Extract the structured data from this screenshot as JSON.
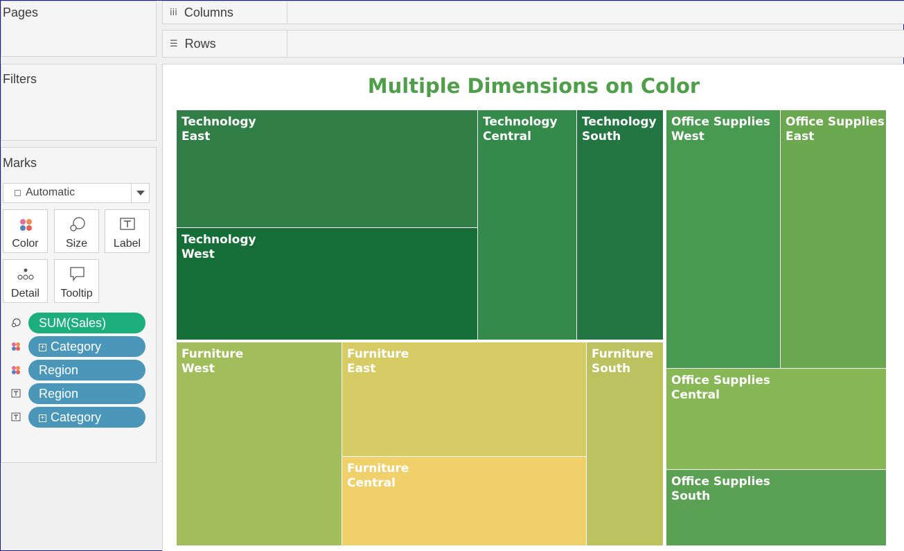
{
  "panels": {
    "pages_title": "Pages",
    "filters_title": "Filters",
    "marks_title": "Marks"
  },
  "shelves": {
    "columns_label": "Columns",
    "columns_icon": "iii",
    "rows_label": "Rows",
    "rows_icon": "☰"
  },
  "marks": {
    "mark_type": "Automatic",
    "buttons": {
      "color": "Color",
      "size": "Size",
      "label": "Label",
      "detail": "Detail",
      "tooltip": "Tooltip"
    },
    "pills": [
      {
        "icon": "size-icon",
        "text": "SUM(Sales)",
        "expand": false,
        "style": "green"
      },
      {
        "icon": "color-icon",
        "text": "Category",
        "expand": true,
        "style": "blue"
      },
      {
        "icon": "color-icon",
        "text": "Region",
        "expand": false,
        "style": "blue"
      },
      {
        "icon": "label-icon",
        "text": "Region",
        "expand": false,
        "style": "blue"
      },
      {
        "icon": "label-icon",
        "text": "Category",
        "expand": true,
        "style": "blue"
      }
    ],
    "expand_symbol": "+"
  },
  "chart_data": {
    "type": "treemap",
    "title": "Multiple Dimensions on Color",
    "size_measure": "SUM(Sales)",
    "color_dimensions": [
      "Category",
      "Region"
    ],
    "label_fields": [
      "Region",
      "Category"
    ],
    "tiles": [
      {
        "category": "Technology",
        "region": "East",
        "color": "#317f47"
      },
      {
        "category": "Technology",
        "region": "West",
        "color": "#156d38"
      },
      {
        "category": "Technology",
        "region": "Central",
        "color": "#338a4b"
      },
      {
        "category": "Technology",
        "region": "South",
        "color": "#237541"
      },
      {
        "category": "Office Supplies",
        "region": "West",
        "color": "#489a50"
      },
      {
        "category": "Office Supplies",
        "region": "East",
        "color": "#6ca84f"
      },
      {
        "category": "Office Supplies",
        "region": "Central",
        "color": "#88b755"
      },
      {
        "category": "Office Supplies",
        "region": "South",
        "color": "#5aa154"
      },
      {
        "category": "Furniture",
        "region": "West",
        "color": "#a1bd5c"
      },
      {
        "category": "Furniture",
        "region": "East",
        "color": "#d6cb65"
      },
      {
        "category": "Furniture",
        "region": "Central",
        "color": "#f0d06a"
      },
      {
        "category": "Furniture",
        "region": "South",
        "color": "#bcc25f"
      }
    ]
  }
}
